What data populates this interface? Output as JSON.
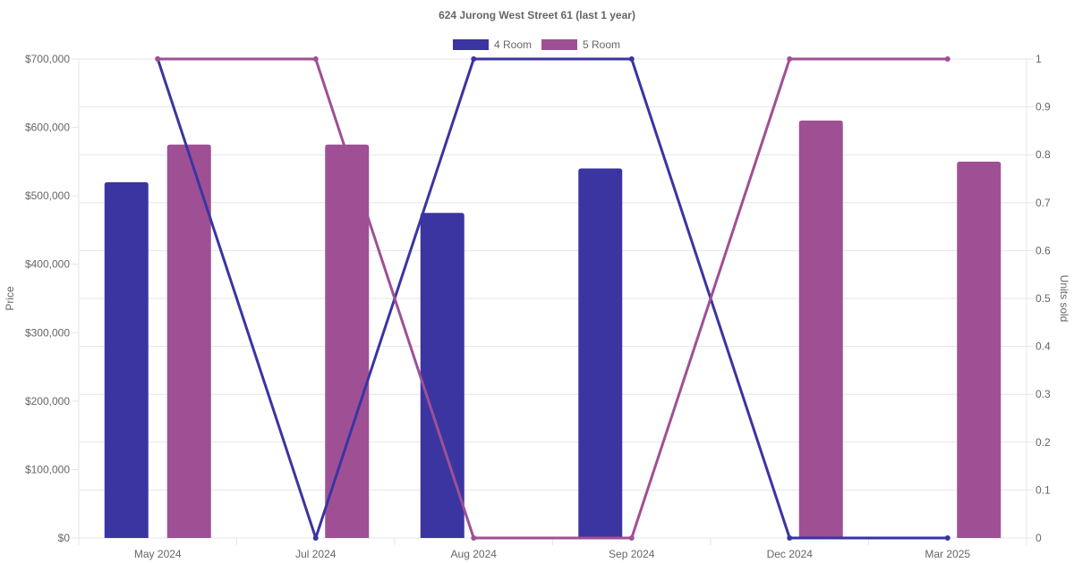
{
  "chart_data": {
    "type": "bar",
    "title": "624 Jurong West Street 61 (last 1 year)",
    "categories": [
      "May 2024",
      "Jul 2024",
      "Aug 2024",
      "Sep 2024",
      "Dec 2024",
      "Mar 2025"
    ],
    "y_left": {
      "label": "Price",
      "ylim": [
        0,
        700000
      ],
      "ticks": [
        "$0",
        "$100,000",
        "$200,000",
        "$300,000",
        "$400,000",
        "$500,000",
        "$600,000",
        "$700,000"
      ]
    },
    "y_right": {
      "label": "Units sold",
      "ylim": [
        0,
        1
      ],
      "ticks": [
        "0",
        "0.1",
        "0.2",
        "0.3",
        "0.4",
        "0.5",
        "0.6",
        "0.7",
        "0.8",
        "0.9",
        "1"
      ]
    },
    "series": [
      {
        "name": "4 Room",
        "color": "#3a35a1",
        "price": [
          520000,
          null,
          475000,
          540000,
          null,
          null
        ],
        "units": [
          1,
          0,
          1,
          1,
          0,
          0
        ]
      },
      {
        "name": "5 Room",
        "color": "#9f5095",
        "price": [
          575000,
          575000,
          null,
          null,
          610000,
          550000
        ],
        "units": [
          1,
          1,
          0,
          0,
          1,
          1
        ]
      }
    ],
    "grid": true,
    "legend": "top-center"
  }
}
